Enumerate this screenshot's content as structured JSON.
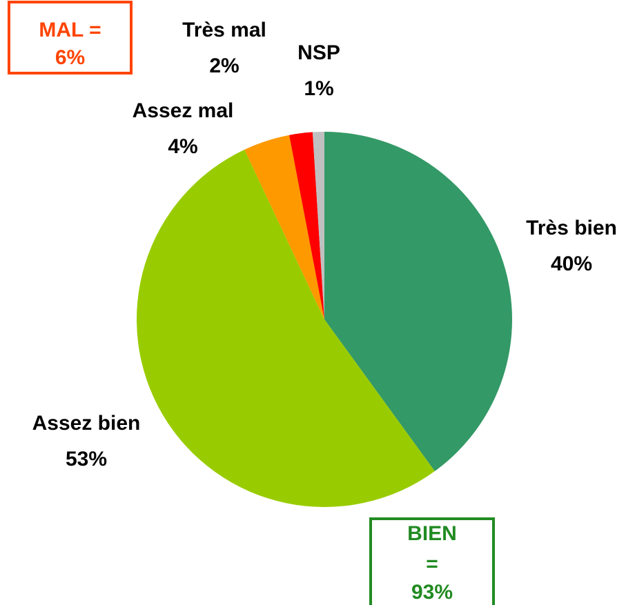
{
  "chart_data": {
    "type": "pie",
    "categories": [
      "Très bien",
      "Assez bien",
      "Assez mal",
      "Très mal",
      "NSP"
    ],
    "values": [
      40,
      53,
      4,
      2,
      1
    ],
    "value_labels": [
      "40%",
      "53%",
      "4%",
      "2%",
      "1%"
    ],
    "colors": [
      "#339966",
      "#99cc00",
      "#ff9900",
      "#ff0000",
      "#c0c0c0"
    ],
    "annotations": [
      {
        "lines": [
          "MAL =",
          "6%"
        ],
        "color": "#ff4400"
      },
      {
        "lines": [
          "BIEN",
          "=",
          "93%"
        ],
        "color": "#228b22"
      }
    ]
  }
}
